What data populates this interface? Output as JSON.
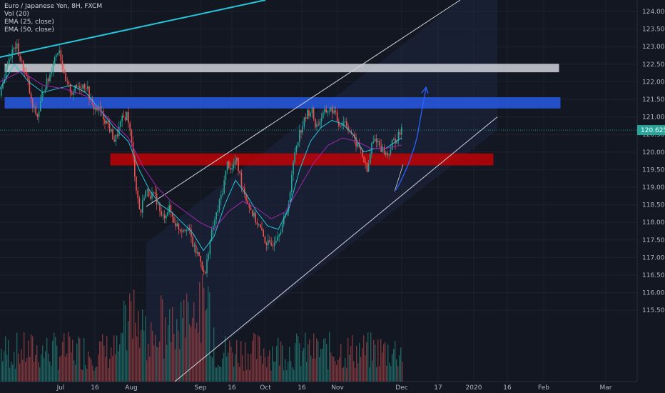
{
  "chart_data": {
    "type": "candlestick",
    "symbol_line": "Euro / Japanese Yen, 8H, FXCM",
    "indicators": [
      "Vol (20)",
      "EMA (25, close)",
      "EMA (50, close)"
    ],
    "last_price": "120.625",
    "ylim": [
      115.25,
      124.25
    ],
    "y_ticks": [
      "124.000",
      "123.500",
      "123.000",
      "122.500",
      "122.000",
      "121.500",
      "121.000",
      "120.500",
      "120.000",
      "119.500",
      "119.000",
      "118.500",
      "118.000",
      "117.500",
      "117.000",
      "116.500",
      "116.000",
      "115.500"
    ],
    "x_ticks": [
      "Jul",
      "16",
      "Aug",
      "Sep",
      "16",
      "Oct",
      "16",
      "Nov",
      "Dec",
      "17",
      "2020",
      "16",
      "Feb",
      "Mar"
    ],
    "price_path": [
      [
        0,
        121.6
      ],
      [
        10,
        122.6
      ],
      [
        22,
        123.05
      ],
      [
        28,
        122.6
      ],
      [
        38,
        122.0
      ],
      [
        44,
        121.3
      ],
      [
        52,
        121.0
      ],
      [
        60,
        121.8
      ],
      [
        68,
        122.1
      ],
      [
        74,
        122.6
      ],
      [
        82,
        123.0
      ],
      [
        90,
        122.0
      ],
      [
        100,
        121.7
      ],
      [
        110,
        121.9
      ],
      [
        120,
        121.9
      ],
      [
        128,
        121.3
      ],
      [
        138,
        121.2
      ],
      [
        150,
        120.8
      ],
      [
        160,
        120.3
      ],
      [
        170,
        120.9
      ],
      [
        178,
        121.1
      ],
      [
        185,
        120.0
      ],
      [
        190,
        119.0
      ],
      [
        196,
        118.2
      ],
      [
        202,
        118.9
      ],
      [
        210,
        118.8
      ],
      [
        218,
        118.7
      ],
      [
        226,
        118.1
      ],
      [
        236,
        118.4
      ],
      [
        244,
        118.0
      ],
      [
        252,
        117.8
      ],
      [
        262,
        117.9
      ],
      [
        272,
        117.2
      ],
      [
        280,
        117.0
      ],
      [
        286,
        116.4
      ],
      [
        292,
        117.3
      ],
      [
        298,
        117.9
      ],
      [
        305,
        118.4
      ],
      [
        312,
        119.0
      ],
      [
        318,
        119.7
      ],
      [
        324,
        119.5
      ],
      [
        330,
        119.8
      ],
      [
        338,
        119.1
      ],
      [
        346,
        118.6
      ],
      [
        354,
        118.2
      ],
      [
        362,
        117.9
      ],
      [
        370,
        117.5
      ],
      [
        378,
        117.3
      ],
      [
        386,
        117.6
      ],
      [
        394,
        117.9
      ],
      [
        400,
        118.2
      ],
      [
        406,
        118.9
      ],
      [
        412,
        120.0
      ],
      [
        418,
        120.5
      ],
      [
        424,
        120.8
      ],
      [
        430,
        121.1
      ],
      [
        436,
        121.2
      ],
      [
        442,
        120.7
      ],
      [
        450,
        121.0
      ],
      [
        458,
        121.2
      ],
      [
        466,
        121.2
      ],
      [
        474,
        120.8
      ],
      [
        482,
        120.9
      ],
      [
        490,
        120.6
      ],
      [
        496,
        120.3
      ],
      [
        504,
        120.1
      ],
      [
        510,
        119.7
      ],
      [
        514,
        119.4
      ],
      [
        520,
        120.2
      ],
      [
        526,
        120.4
      ],
      [
        534,
        120.1
      ],
      [
        542,
        119.9
      ],
      [
        550,
        120.3
      ],
      [
        556,
        120.4
      ],
      [
        562,
        120.6
      ]
    ],
    "ema25_path": [
      [
        0,
        121.8
      ],
      [
        20,
        122.5
      ],
      [
        40,
        122.0
      ],
      [
        60,
        121.7
      ],
      [
        80,
        121.8
      ],
      [
        100,
        121.9
      ],
      [
        120,
        121.7
      ],
      [
        140,
        121.2
      ],
      [
        160,
        120.7
      ],
      [
        180,
        120.3
      ],
      [
        195,
        119.5
      ],
      [
        210,
        118.9
      ],
      [
        225,
        118.5
      ],
      [
        240,
        118.3
      ],
      [
        255,
        118.0
      ],
      [
        270,
        117.7
      ],
      [
        285,
        117.2
      ],
      [
        300,
        117.6
      ],
      [
        315,
        118.5
      ],
      [
        330,
        119.2
      ],
      [
        345,
        118.8
      ],
      [
        360,
        118.3
      ],
      [
        375,
        117.9
      ],
      [
        390,
        117.8
      ],
      [
        405,
        118.4
      ],
      [
        420,
        119.5
      ],
      [
        435,
        120.3
      ],
      [
        450,
        120.7
      ],
      [
        465,
        120.9
      ],
      [
        480,
        120.8
      ],
      [
        495,
        120.5
      ],
      [
        510,
        120.0
      ],
      [
        525,
        120.1
      ],
      [
        540,
        120.1
      ],
      [
        555,
        120.3
      ],
      [
        563,
        120.4
      ]
    ],
    "ema50_path": [
      [
        0,
        122.0
      ],
      [
        30,
        122.3
      ],
      [
        60,
        121.9
      ],
      [
        90,
        121.8
      ],
      [
        120,
        121.6
      ],
      [
        150,
        121.0
      ],
      [
        180,
        120.4
      ],
      [
        200,
        119.6
      ],
      [
        220,
        119.0
      ],
      [
        240,
        118.6
      ],
      [
        260,
        118.3
      ],
      [
        280,
        118.0
      ],
      [
        300,
        117.8
      ],
      [
        320,
        118.3
      ],
      [
        340,
        118.6
      ],
      [
        360,
        118.4
      ],
      [
        380,
        118.1
      ],
      [
        400,
        118.3
      ],
      [
        420,
        119.0
      ],
      [
        440,
        119.7
      ],
      [
        460,
        120.2
      ],
      [
        480,
        120.4
      ],
      [
        500,
        120.3
      ],
      [
        520,
        120.1
      ],
      [
        540,
        120.1
      ],
      [
        563,
        120.2
      ]
    ],
    "zones": [
      {
        "label": "resistance-upper",
        "color": "#d1d4dc",
        "y_top": 122.5,
        "y_bottom": 122.28,
        "x_start": 7,
        "x_end": 783
      },
      {
        "label": "resistance",
        "color": "#2962ff",
        "y_top": 121.55,
        "y_bottom": 121.25,
        "x_start": 7,
        "x_end": 785
      },
      {
        "label": "support",
        "color": "#d50000",
        "y_top": 119.95,
        "y_bottom": 119.63,
        "x_start": 155,
        "x_end": 691
      }
    ],
    "ema_colors": {
      "ema25": "#26c6da",
      "ema50": "#9c27b0"
    },
    "up_color": "#26a69a",
    "down_color": "#ef5350"
  }
}
